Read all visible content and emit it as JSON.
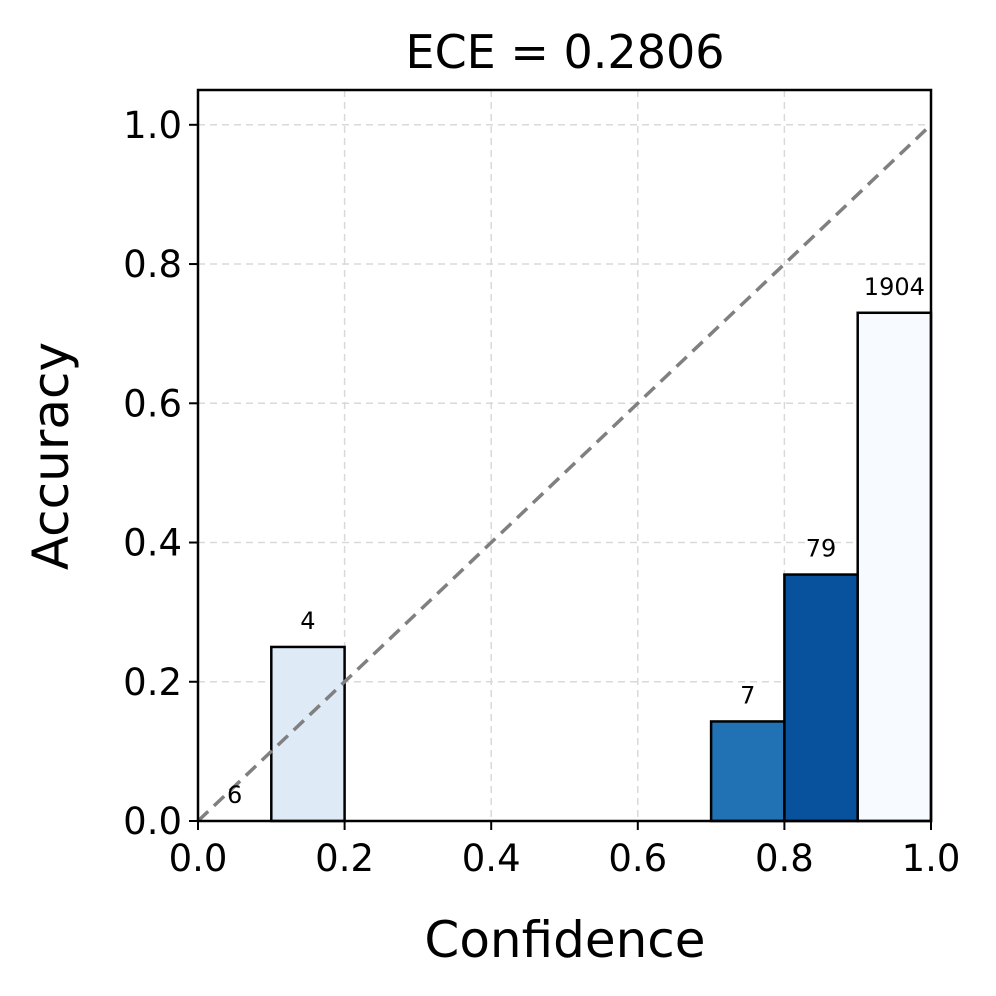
{
  "chart_data": {
    "type": "bar",
    "title": "ECE = 0.2806",
    "xlabel": "Confidence",
    "ylabel": "Accuracy",
    "xlim": [
      0.0,
      1.0
    ],
    "ylim": [
      0.0,
      1.05
    ],
    "xticks": [
      "0.0",
      "0.2",
      "0.4",
      "0.6",
      "0.8",
      "1.0"
    ],
    "yticks": [
      "0.0",
      "0.2",
      "0.4",
      "0.6",
      "0.8",
      "1.0"
    ],
    "grid": true,
    "bins": [
      {
        "x0": 0.0,
        "x1": 0.1,
        "accuracy": 0.0,
        "count": "6",
        "color": "#ffffff"
      },
      {
        "x0": 0.1,
        "x1": 0.2,
        "accuracy": 0.25,
        "count": "4",
        "color": "#deebf7"
      },
      {
        "x0": 0.7,
        "x1": 0.8,
        "accuracy": 0.143,
        "count": "7",
        "color": "#2171b5"
      },
      {
        "x0": 0.8,
        "x1": 0.9,
        "accuracy": 0.354,
        "count": "79",
        "color": "#08519c"
      },
      {
        "x0": 0.9,
        "x1": 1.0,
        "accuracy": 0.73,
        "count": "1904",
        "color": "#f7fbff"
      }
    ],
    "diagonal": {
      "from": [
        0.0,
        0.0
      ],
      "to": [
        1.0,
        1.0
      ],
      "color": "#808080",
      "style": "dashed"
    }
  }
}
